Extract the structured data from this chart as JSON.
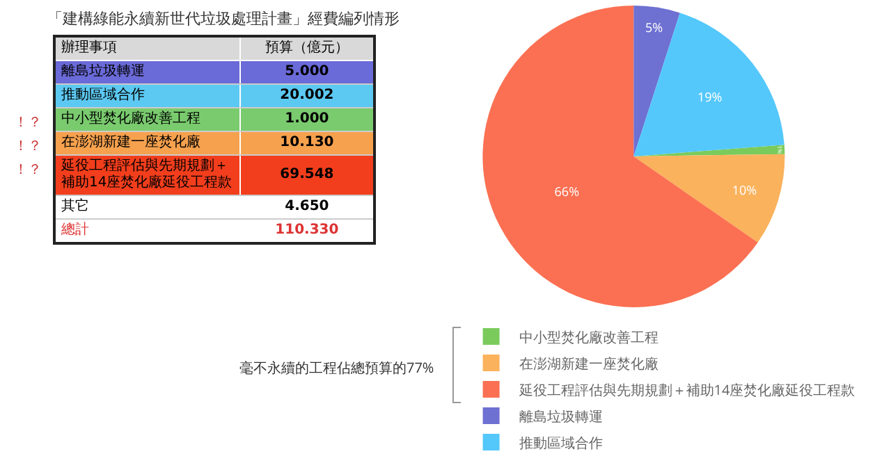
{
  "chart_data": [
    {
      "type": "other",
      "title": "「建構綠能永續新世代垃圾處理計畫」經費編列情形",
      "categories": [
        "離島垃圾轉運",
        "推動區域合作",
        "中小型焚化廠改善工程",
        "在澎湖新建一座焚化廠",
        "延役工程評估與先期規劃＋補助14座焚化廠延役工程款",
        "其它",
        "總計"
      ],
      "values": [
        5.0,
        20.002,
        1.0,
        10.13,
        69.548,
        4.65,
        110.33
      ],
      "colors": [
        "#6a6ad8",
        "#5cc9f2",
        "#7acb6e",
        "#f6a14e",
        "#f23e1c",
        "#ffffff",
        "#ffffff"
      ],
      "value_labels": [
        "5.000",
        "20.002",
        "1.000",
        "10.130",
        "69.548",
        "4.650",
        "110.330"
      ],
      "annotations": [
        "辦理事項",
        "預算（億元）",
        {
          "text": "！？",
          "y": "中小型焚化廠改善工程"
        },
        {
          "text": "！？",
          "y": "在澎湖新建一座焚化廠"
        },
        {
          "text": "！？",
          "y": "延役工程評估與先期規劃＋補助14座焚化廠延役工程款"
        }
      ]
    },
    {
      "type": "pie",
      "categories": [
        "中小型焚化廠改善工程",
        "在澎湖新建一座焚化廠",
        "延役工程評估與先期規劃＋補助14座焚化廠延役工程款",
        "離島垃圾轉運",
        "推動區域合作"
      ],
      "values": [
        1,
        10,
        66,
        5,
        19
      ],
      "value_labels": [
        "1%",
        "10%",
        "66%",
        "5%",
        "19%"
      ],
      "colors": [
        "#7acb5c",
        "#fbb25c",
        "#fb7052",
        "#6e70d2",
        "#54c8fb"
      ],
      "legend": "bottom",
      "annotations": [
        "毫不永續的工程佔總預算的77%"
      ]
    }
  ]
}
